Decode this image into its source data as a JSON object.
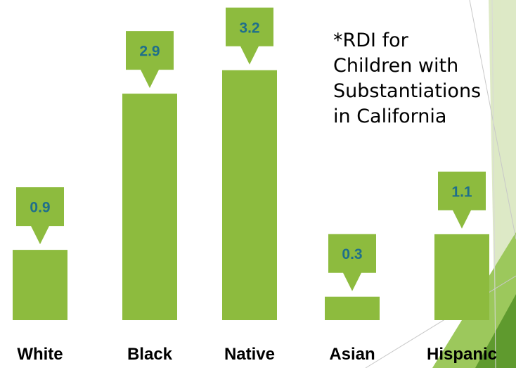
{
  "chart_data": {
    "type": "bar",
    "categories": [
      "White",
      "Black",
      "Native",
      "Asian",
      "Hispanic"
    ],
    "values": [
      0.9,
      2.9,
      3.2,
      0.3,
      1.1
    ],
    "data_labels": [
      "0.9",
      "2.9",
      "3.2",
      "0.3",
      "1.1"
    ],
    "note_lines": [
      "*RDI for",
      "Children with",
      "Substantiations",
      "in California"
    ],
    "title": "",
    "xlabel": "",
    "ylabel": "",
    "grid": false,
    "legend": "none"
  },
  "colors": {
    "bar": "#8dbb3e",
    "callout": "#8dbb3e",
    "label_value": "#1f6f8b",
    "label_category": "#000000",
    "decor_light": "#dde9c5",
    "decor_mid": "#9cc85c",
    "decor_dark": "#5f9a2e"
  }
}
